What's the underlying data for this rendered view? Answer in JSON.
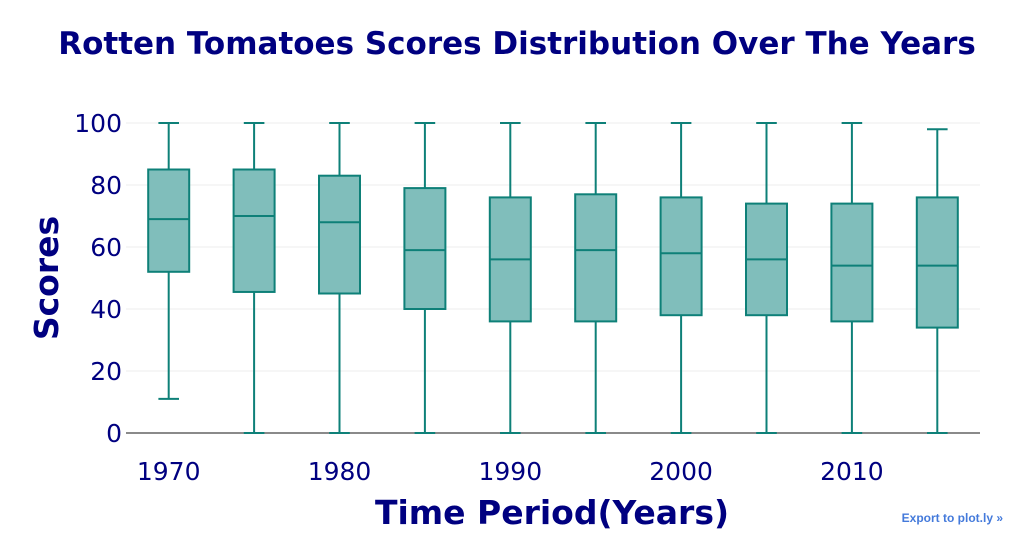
{
  "chart_data": {
    "type": "box",
    "title": "Rotten Tomatoes Scores Distribution Over The Years",
    "xlabel": "Time Period(Years)",
    "ylabel": "Scores",
    "ylim": [
      0,
      100
    ],
    "xlim": [
      1967.5,
      2017.5
    ],
    "y_ticks": [
      0,
      20,
      40,
      60,
      80,
      100
    ],
    "x_ticks": [
      1970,
      1980,
      1990,
      2000,
      2010
    ],
    "grid": true,
    "legend": "none",
    "series": [
      {
        "boxes": [
          {
            "x": 1970,
            "min": 11,
            "q1": 52,
            "median": 69,
            "q3": 85,
            "max": 100
          },
          {
            "x": 1975,
            "min": 0,
            "q1": 45.5,
            "median": 70,
            "q3": 85,
            "max": 100
          },
          {
            "x": 1980,
            "min": 0,
            "q1": 45,
            "median": 68,
            "q3": 83,
            "max": 100
          },
          {
            "x": 1985,
            "min": 0,
            "q1": 40,
            "median": 59,
            "q3": 79,
            "max": 100
          },
          {
            "x": 1990,
            "min": 0,
            "q1": 36,
            "median": 56,
            "q3": 76,
            "max": 100
          },
          {
            "x": 1995,
            "min": 0,
            "q1": 36,
            "median": 59,
            "q3": 77,
            "max": 100
          },
          {
            "x": 2000,
            "min": 0,
            "q1": 38,
            "median": 58,
            "q3": 76,
            "max": 100
          },
          {
            "x": 2005,
            "min": 0,
            "q1": 38,
            "median": 56,
            "q3": 74,
            "max": 100
          },
          {
            "x": 2010,
            "min": 0,
            "q1": 36,
            "median": 54,
            "q3": 74,
            "max": 100
          },
          {
            "x": 2015,
            "min": 0,
            "q1": 34,
            "median": 54,
            "q3": 76,
            "max": 98
          }
        ]
      }
    ],
    "colors": {
      "title": "#000080",
      "axis_text": "#000080",
      "box_fill": "#80bebb",
      "box_line": "#0e8078",
      "grid": "#eeeeee",
      "zero_line": "#444444"
    }
  },
  "export_link": {
    "label": "Export to plot.ly »"
  }
}
